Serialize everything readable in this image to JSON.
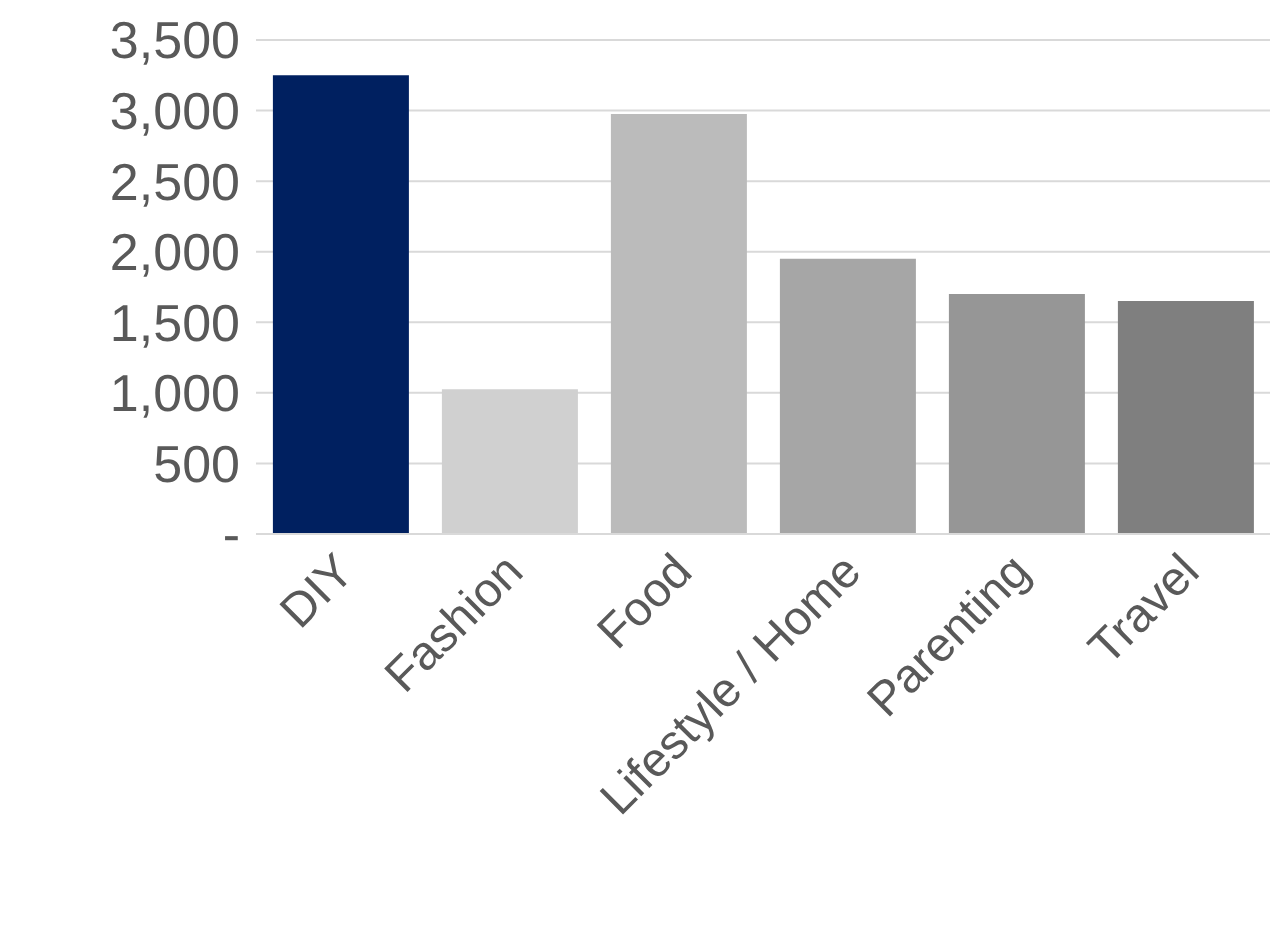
{
  "chart_data": {
    "type": "bar",
    "categories": [
      "DIY",
      "Fashion",
      "Food",
      "Lifestyle / Home",
      "Parenting",
      "Travel"
    ],
    "values": [
      3250,
      1025,
      2975,
      1950,
      1700,
      1650
    ],
    "colors": [
      "#002060",
      "#d0d0d0",
      "#bbbbbb",
      "#a6a6a6",
      "#969696",
      "#7f7f7f"
    ],
    "ylim": [
      0,
      3500
    ],
    "yticks": [
      {
        "value": 0,
        "label": "-"
      },
      {
        "value": 500,
        "label": "500"
      },
      {
        "value": 1000,
        "label": "1,000"
      },
      {
        "value": 1500,
        "label": "1,500"
      },
      {
        "value": 2000,
        "label": "2,000"
      },
      {
        "value": 2500,
        "label": "2,500"
      },
      {
        "value": 3000,
        "label": "3,000"
      },
      {
        "value": 3500,
        "label": "3,500"
      }
    ],
    "grid": "y"
  }
}
